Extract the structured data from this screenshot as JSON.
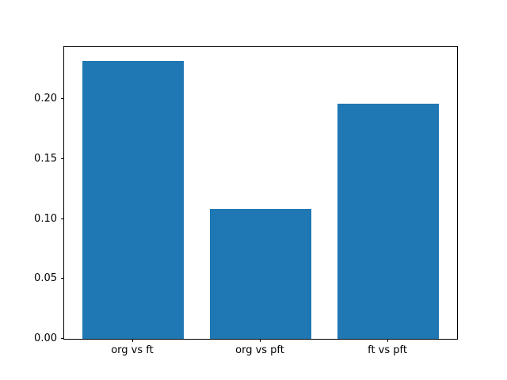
{
  "figure": {
    "background": "#ffffff",
    "spine_color": "#000000"
  },
  "chart_data": {
    "type": "bar",
    "categories": [
      "org vs ft",
      "org vs pft",
      "ft vs pft"
    ],
    "values": [
      0.232,
      0.108,
      0.196
    ],
    "title": "",
    "xlabel": "",
    "ylabel": "",
    "ylim": [
      0,
      0.2436
    ],
    "xlim": [
      -0.54,
      2.54
    ],
    "yticks": [
      0.0,
      0.05,
      0.1,
      0.15,
      0.2
    ],
    "ytick_labels": [
      "0.00",
      "0.05",
      "0.10",
      "0.15",
      "0.20"
    ],
    "bar_width": 0.8,
    "bar_color": "#1f77b4",
    "grid": false,
    "legend": null
  }
}
